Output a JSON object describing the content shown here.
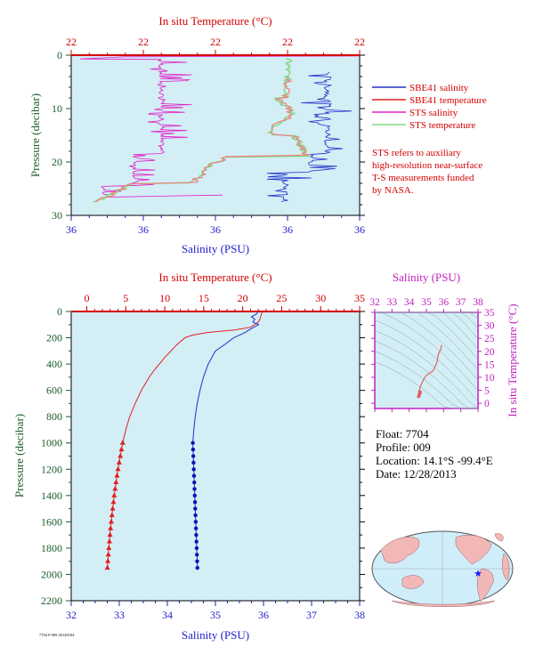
{
  "colors": {
    "plot_bg": "#d4eef6",
    "temp_axis": "#d40000",
    "salinity_axis": "#1f1fc8",
    "pressure_axis": "#1a5c2a",
    "sbe_salinity": "#2030c8",
    "sbe_temperature": "#e02020",
    "sts_salinity": "#e020c8",
    "sts_temperature": "#80d880",
    "ts_axis": "#c020c0",
    "ts_curve": "#e06060",
    "map_land": "#f2b8b8",
    "map_ocean": "#cfeefa",
    "marker_star": "#1a1aff"
  },
  "top_panel": {
    "temp_title": "In situ Temperature (°C)",
    "salinity_title": "Salinity (PSU)",
    "pressure_title": "Pressure (decibar)",
    "note_lines": [
      "STS refers to auxiliary",
      "high-resolution near-surface",
      "T-S measurements funded",
      "by NASA."
    ]
  },
  "bottom_panel": {
    "temp_title": "In situ Temperature (°C)",
    "salinity_title": "Salinity (PSU)",
    "pressure_title": "Pressure (decibar)"
  },
  "ts_inset": {
    "salinity_title": "Salinity (PSU)",
    "temp_title": "In situ Temperature (°C)"
  },
  "info": {
    "float_line": "Float:  7704",
    "profile_line": "Profile:  009",
    "location_line": "Location:  14.1°S  -99.4°E",
    "date_line": "Date:  12/28/2013"
  },
  "footer_stamp": "7704 P 009 20140104",
  "map": {
    "marker_icon": "star-icon"
  },
  "chart_data": [
    {
      "id": "top",
      "type": "line",
      "top_temp_ticks": [
        "22",
        "22",
        "22",
        "22",
        "22"
      ],
      "bottom_salinity_ticks": [
        "36",
        "36",
        "36",
        "36",
        "36"
      ],
      "pressure_ticks": [
        0,
        10,
        20,
        30
      ],
      "ylim": [
        0,
        30
      ],
      "legend_position": "right",
      "series": [
        {
          "name": "SBE41 salinity",
          "key": "sbe_salinity"
        },
        {
          "name": "SBE41 temperature",
          "key": "sbe_temperature"
        },
        {
          "name": "STS salinity",
          "key": "sts_salinity"
        },
        {
          "name": "STS temperature",
          "key": "sts_temperature"
        }
      ]
    },
    {
      "id": "bottom",
      "type": "line",
      "temp_ticks": [
        0,
        5,
        10,
        15,
        20,
        25,
        30,
        35
      ],
      "temp_range": [
        -2,
        35
      ],
      "salinity_ticks": [
        32,
        33,
        34,
        35,
        36,
        37,
        38
      ],
      "salinity_range": [
        32,
        38
      ],
      "pressure_ticks": [
        0,
        200,
        400,
        600,
        800,
        1000,
        1200,
        1400,
        1600,
        1800,
        2000,
        2200
      ],
      "ylim": [
        0,
        2200
      ],
      "temperature_profile": {
        "pressure": [
          5,
          20,
          40,
          60,
          80,
          100,
          120,
          140,
          160,
          180,
          200,
          250,
          300,
          350,
          400,
          450,
          500,
          600,
          700,
          800,
          900,
          1000
        ],
        "values": [
          22.5,
          22.4,
          22.3,
          22.2,
          22.0,
          21.5,
          21.0,
          19.0,
          15.5,
          13.5,
          12.6,
          11.6,
          10.8,
          10.0,
          9.3,
          8.6,
          8.0,
          7.0,
          6.2,
          5.5,
          5.0,
          4.6
        ]
      },
      "salinity_profile": {
        "pressure": [
          5,
          20,
          40,
          60,
          80,
          100,
          120,
          140,
          160,
          180,
          200,
          250,
          300,
          400,
          500,
          600,
          700,
          800,
          900,
          1000
        ],
        "values": [
          35.88,
          35.85,
          35.75,
          35.82,
          35.78,
          35.9,
          35.8,
          35.7,
          35.62,
          35.5,
          35.38,
          35.2,
          35.0,
          34.85,
          34.75,
          34.68,
          34.62,
          34.58,
          34.55,
          34.53
        ]
      },
      "deep_points": {
        "pressure": [
          1000,
          1050,
          1100,
          1150,
          1200,
          1250,
          1300,
          1350,
          1400,
          1450,
          1500,
          1550,
          1600,
          1650,
          1700,
          1750,
          1800,
          1850,
          1900,
          1950
        ],
        "temperature": [
          4.6,
          4.45,
          4.3,
          4.15,
          4.0,
          3.87,
          3.75,
          3.63,
          3.52,
          3.42,
          3.32,
          3.23,
          3.14,
          3.05,
          2.97,
          2.9,
          2.83,
          2.76,
          2.7,
          2.64
        ],
        "salinity": [
          34.53,
          34.535,
          34.54,
          34.545,
          34.55,
          34.555,
          34.56,
          34.565,
          34.57,
          34.575,
          34.58,
          34.585,
          34.59,
          34.595,
          34.6,
          34.605,
          34.61,
          34.615,
          34.62,
          34.625
        ]
      }
    },
    {
      "id": "ts",
      "type": "line",
      "salinity_ticks": [
        32,
        33,
        34,
        35,
        36,
        37,
        38
      ],
      "temp_ticks": [
        0,
        5,
        10,
        15,
        20,
        25,
        30,
        35
      ],
      "xlim": [
        32,
        38
      ],
      "ylim": [
        -2,
        35
      ],
      "curve": {
        "salinity": [
          35.88,
          35.85,
          35.7,
          35.6,
          35.4,
          35.2,
          35.0,
          34.85,
          34.75,
          34.68,
          34.6,
          34.55,
          34.58,
          34.6,
          34.62
        ],
        "temperature": [
          22.5,
          21.0,
          19.0,
          15.5,
          12.6,
          11.6,
          10.8,
          9.3,
          8.0,
          7.0,
          5.5,
          4.6,
          3.5,
          3.0,
          2.6
        ]
      }
    }
  ]
}
